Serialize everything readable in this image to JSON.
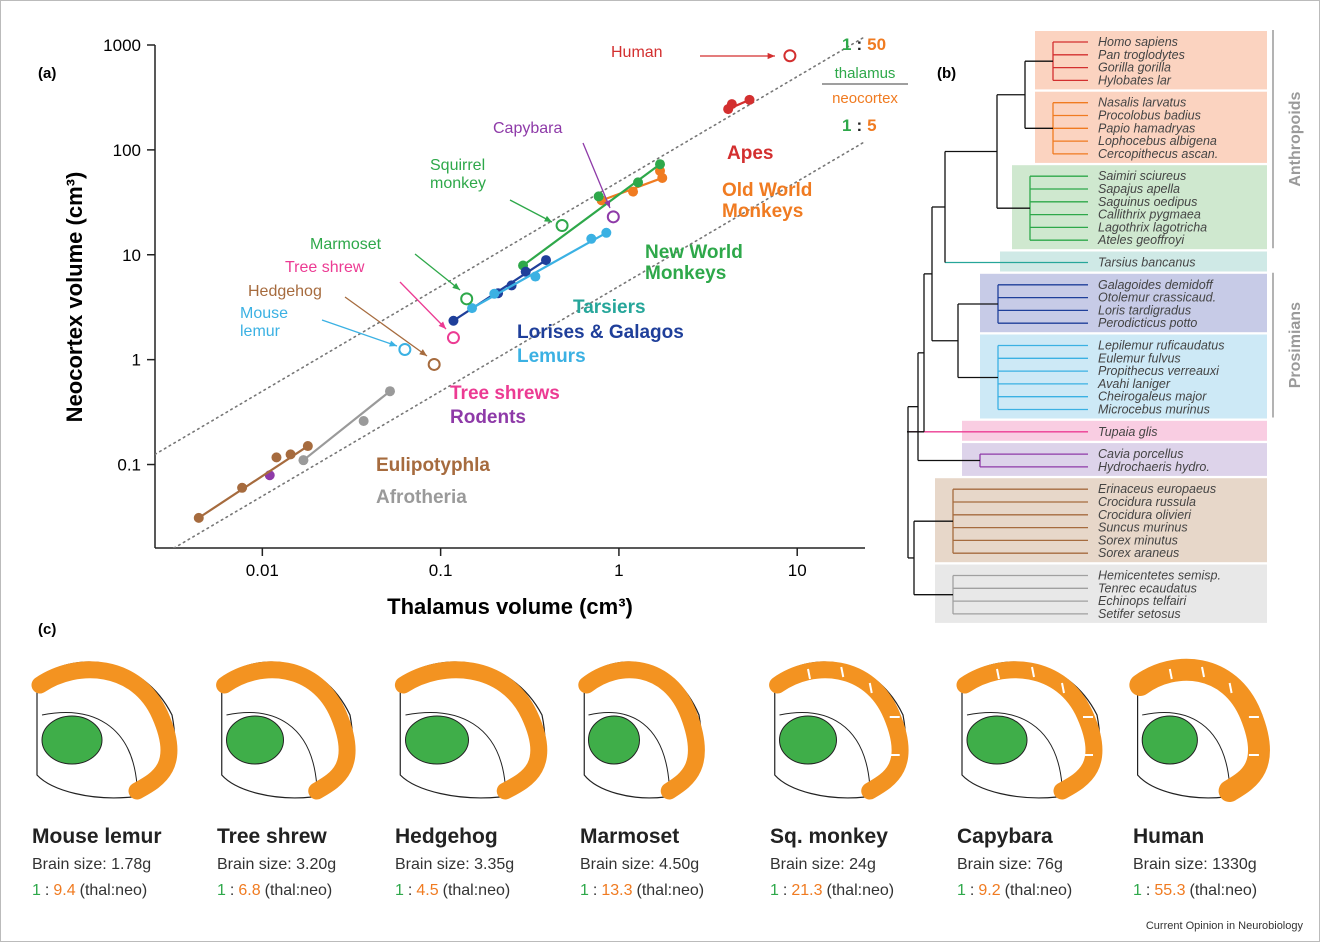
{
  "panels": [
    "(a)",
    "(b)",
    "(c)"
  ],
  "chart_data": {
    "type": "scatter",
    "x_label": "Thalamus volume (cm³)",
    "y_label": "Neocortex volume (cm³)",
    "xscale": "log",
    "yscale": "log",
    "xlim": [
      0.0025,
      24
    ],
    "ylim": [
      0.016,
      1000
    ],
    "xticks": [
      0.01,
      0.1,
      1,
      10
    ],
    "yticks": [
      0.1,
      1,
      10,
      100,
      1000
    ],
    "series": [
      {
        "name": "Apes",
        "color": "#d32f2f",
        "x": [
          4.1,
          4.3,
          5.4
        ],
        "values": [
          245,
          273,
          300
        ]
      },
      {
        "name": "Old World Monkeys",
        "color": "#f07b21",
        "x": [
          0.8,
          1.2,
          1.7,
          1.75
        ],
        "values": [
          33,
          40,
          63,
          54
        ]
      },
      {
        "name": "New World Monkeys",
        "color": "#2ea84a",
        "x": [
          0.29,
          0.77,
          1.28,
          1.7
        ],
        "values": [
          7.9,
          36,
          49,
          73
        ]
      },
      {
        "name": "Tarsiers",
        "color": "#26a69a",
        "x": [],
        "values": []
      },
      {
        "name": "Lorises & Galagos",
        "color": "#1f3f9a",
        "x": [
          0.118,
          0.21,
          0.25,
          0.3,
          0.39
        ],
        "values": [
          2.35,
          4.3,
          5.1,
          6.9,
          8.9
        ]
      },
      {
        "name": "Lemurs",
        "color": "#3bb1e3",
        "x": [
          0.15,
          0.2,
          0.34,
          0.7,
          0.85
        ],
        "values": [
          3.1,
          4.25,
          6.2,
          14.2,
          16.2
        ]
      },
      {
        "name": "Tree shrews",
        "color": "#ec3b93",
        "x": [],
        "values": []
      },
      {
        "name": "Rodents",
        "color": "#8e3aa8",
        "x": [
          0.011
        ],
        "values": [
          0.079
        ]
      },
      {
        "name": "Eulipotyphla",
        "color": "#a66b3e",
        "x": [
          0.0044,
          0.0077,
          0.012,
          0.0144,
          0.018
        ],
        "values": [
          0.031,
          0.06,
          0.117,
          0.125,
          0.15
        ]
      },
      {
        "name": "Afrotheria",
        "color": "#9a9a9a",
        "x": [
          0.017,
          0.037,
          0.052
        ],
        "values": [
          0.11,
          0.26,
          0.5
        ]
      }
    ],
    "annotations": [
      {
        "text": "Human",
        "color": "#d32f2f",
        "x": 9.1,
        "y": 790
      },
      {
        "text": "Capybara",
        "color": "#8e3aa8",
        "x": 0.93,
        "y": 23
      },
      {
        "text": "Squirrel monkey",
        "color": "#2ea84a",
        "x": 0.48,
        "y": 19
      },
      {
        "text": "Marmoset",
        "color": "#2ea84a",
        "x": 0.14,
        "y": 3.8
      },
      {
        "text": "Tree shrew",
        "color": "#ec3b93",
        "x": 0.118,
        "y": 1.62
      },
      {
        "text": "Hedgehog",
        "color": "#a66b3e",
        "x": 0.092,
        "y": 0.9
      },
      {
        "text": "Mouse lemur",
        "color": "#3bb1e3",
        "x": 0.063,
        "y": 1.25
      }
    ],
    "ratio_separator": ":",
    "ratio_lines": [
      {
        "thal": 1,
        "neo": 50
      },
      {
        "thal": 1,
        "neo": 5
      }
    ],
    "ratio_legend": {
      "numerator": "thalamus",
      "denominator": "neocortex"
    }
  },
  "tree": {
    "clades": [
      "Anthropoids",
      "Prosimians"
    ],
    "groups": [
      {
        "color": "#d32f2f",
        "fill": "#fbd3c0",
        "leaves": [
          "Homo sapiens",
          "Pan troglodytes",
          "Gorilla gorilla",
          "Hylobates lar"
        ]
      },
      {
        "color": "#f07b21",
        "fill": "#fbd3c0",
        "leaves": [
          "Nasalis larvatus",
          "Procolobus badius",
          "Papio hamadryas",
          "Lophocebus albigena",
          "Cercopithecus ascan."
        ]
      },
      {
        "color": "#2ea84a",
        "fill": "#cfe8cf",
        "leaves": [
          "Saimiri sciureus",
          "Sapajus apella",
          "Saguinus oedipus",
          "Callithrix pygmaea",
          "Lagothrix lagotricha",
          "Ateles geoffroyi"
        ]
      },
      {
        "color": "#26a69a",
        "fill": "#cfe9e6",
        "leaves": [
          "Tarsius bancanus"
        ]
      },
      {
        "color": "#1f3f9a",
        "fill": "#c7cbe7",
        "leaves": [
          "Galagoides demidoff",
          "Otolemur crassicaud.",
          "Loris tardigradus",
          "Perodicticus potto"
        ]
      },
      {
        "color": "#3bb1e3",
        "fill": "#cde9f6",
        "leaves": [
          "Lepilemur ruficaudatus",
          "Eulemur fulvus",
          "Propithecus verreauxi",
          "Avahi laniger",
          "Cheirogaleus major",
          "Microcebus murinus"
        ]
      },
      {
        "color": "#ec3b93",
        "fill": "#f9cde2",
        "leaves": [
          "Tupaia glis"
        ]
      },
      {
        "color": "#8e3aa8",
        "fill": "#ddd3ea",
        "leaves": [
          "Cavia porcellus",
          "Hydrochaeris hydro."
        ]
      },
      {
        "color": "#a66b3e",
        "fill": "#e7d7c9",
        "leaves": [
          "Erinaceus europaeus",
          "Crocidura russula",
          "Crocidura olivieri",
          "Suncus murinus",
          "Sorex minutus",
          "Sorex araneus"
        ]
      },
      {
        "color": "#a0a0a0",
        "fill": "#e8e8e8",
        "leaves": [
          "Hemicentetes semisp.",
          "Tenrec ecaudatus",
          "Echinops telfairi",
          "Setifer setosus"
        ]
      }
    ]
  },
  "brains": {
    "ratio_separator": ":",
    "ratio_note": "(thal:neo)",
    "items": [
      {
        "name": "Mouse lemur",
        "brain_size": "Brain size: 1.78g",
        "thal": 1,
        "neo": 9.4
      },
      {
        "name": "Tree shrew",
        "brain_size": "Brain size: 3.20g",
        "thal": 1,
        "neo": 6.8
      },
      {
        "name": "Hedgehog",
        "brain_size": "Brain size: 3.35g",
        "thal": 1,
        "neo": 4.5
      },
      {
        "name": "Marmoset",
        "brain_size": "Brain size: 4.50g",
        "thal": 1,
        "neo": 13.3
      },
      {
        "name": "Sq. monkey",
        "brain_size": "Brain size: 24g",
        "thal": 1,
        "neo": 21.3
      },
      {
        "name": "Capybara",
        "brain_size": "Brain size: 76g",
        "thal": 1,
        "neo": 9.2
      },
      {
        "name": "Human",
        "brain_size": "Brain size: 1330g",
        "thal": 1,
        "neo": 55.3
      }
    ]
  },
  "credit": "Current Opinion in Neurobiology"
}
